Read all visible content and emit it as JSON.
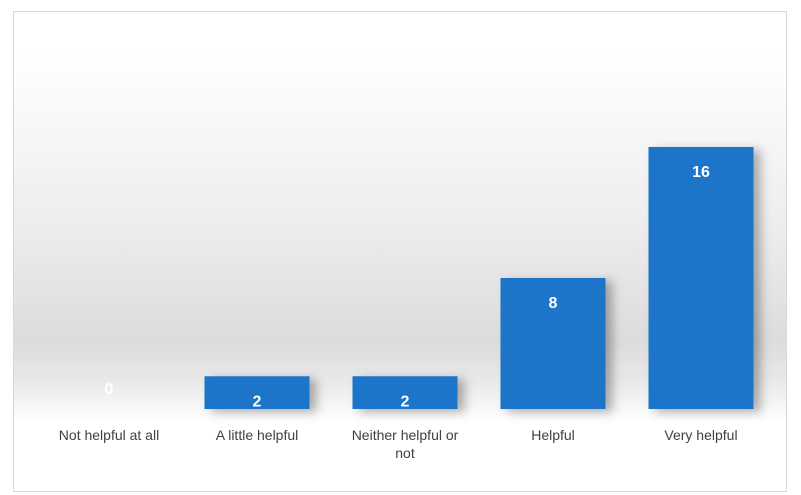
{
  "chart_data": {
    "type": "bar",
    "categories": [
      "Not helpful at all",
      "A little helpful",
      "Neither helpful or not",
      "Helpful",
      "Very helpful"
    ],
    "values": [
      0,
      2,
      2,
      8,
      16
    ],
    "title": "",
    "xlabel": "",
    "ylabel": "",
    "ylim": [
      0,
      16
    ],
    "grid": false,
    "data_labels": true,
    "colors": {
      "bar": "#1f75c8",
      "label": "#ffffff",
      "category_text": "#404040",
      "border": "#d9d9d9"
    }
  }
}
